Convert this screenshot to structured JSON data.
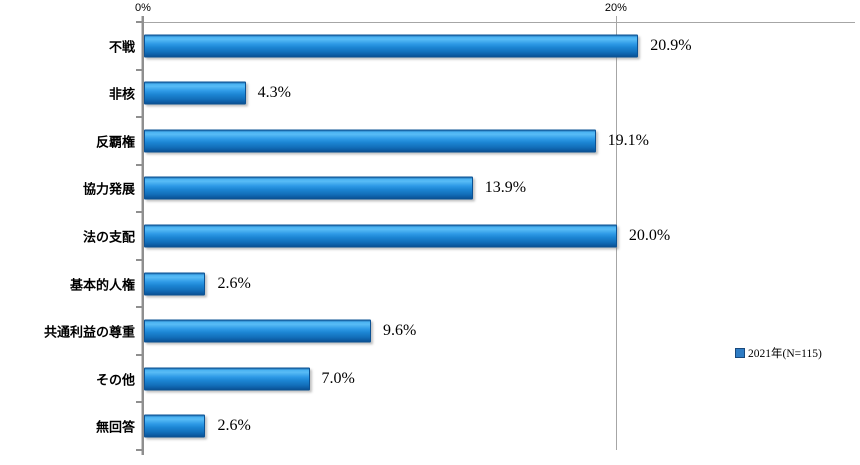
{
  "chart_data": {
    "type": "bar",
    "orientation": "horizontal",
    "title": "",
    "xlabel": "",
    "ylabel": "",
    "categories": [
      "不戦",
      "非核",
      "反覇権",
      "協力発展",
      "法の支配",
      "基本的人権",
      "共通利益の尊重",
      "その他",
      "無回答"
    ],
    "series": [
      {
        "name": "2021年(N=115)",
        "values": [
          20.9,
          4.3,
          19.1,
          13.9,
          20.0,
          2.6,
          9.6,
          7.0,
          2.6
        ],
        "value_labels": [
          "20.9%",
          "4.3%",
          "19.1%",
          "13.9%",
          "20.0%",
          "2.6%",
          "9.6%",
          "7.0%",
          "2.6%"
        ]
      }
    ],
    "x_ticks": [
      {
        "label": "0%",
        "value": 0
      },
      {
        "label": "20%",
        "value": 20
      }
    ],
    "xlim": [
      0,
      30.11
    ],
    "grid": "vertical gridline at 20%",
    "legend_position": "right",
    "colors": {
      "bar_main": "#1b84d2",
      "bar_highlight": "#58bcf6",
      "bar_dark": "#0b5294",
      "axis": "#8f8f8f",
      "gridline": "#a6a6a6",
      "text": "#000000",
      "legend_swatch": "#2e7cc4"
    }
  },
  "legend": {
    "label": "2021年(N=115)"
  }
}
